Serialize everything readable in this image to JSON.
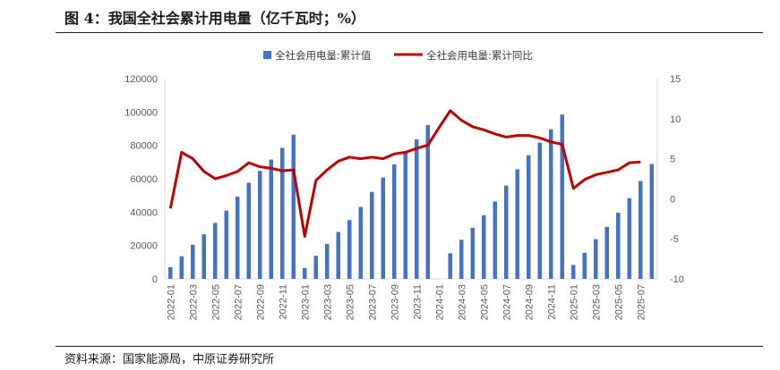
{
  "figure": {
    "title": "图 4：我国全社会累计用电量（亿千瓦时；%）",
    "source": "资料来源：国家能源局，中原证券研究所"
  },
  "colors": {
    "bar": "#4472C4",
    "line": "#C00000",
    "axis": "#D9D9D9",
    "text": "#595959"
  },
  "chart_data": {
    "type": "bar+line",
    "title": "图 4：我国全社会累计用电量（亿千瓦时；%）",
    "categories": [
      "2022-01",
      "2022-02",
      "2022-03",
      "2022-04",
      "2022-05",
      "2022-06",
      "2022-07",
      "2022-08",
      "2022-09",
      "2022-10",
      "2022-11",
      "2022-12",
      "2023-01",
      "2023-02",
      "2023-03",
      "2023-04",
      "2023-05",
      "2023-06",
      "2023-07",
      "2023-08",
      "2023-09",
      "2023-10",
      "2023-11",
      "2023-12",
      "2024-01",
      "2024-02",
      "2024-03",
      "2024-04",
      "2024-05",
      "2024-06",
      "2024-07",
      "2024-08",
      "2024-09",
      "2024-10",
      "2024-11",
      "2024-12",
      "2025-01",
      "2025-02",
      "2025-03",
      "2025-04",
      "2025-05",
      "2025-06",
      "2025-07",
      "2025-08"
    ],
    "x_tick_labels": [
      "2022-01",
      "2022-03",
      "2022-05",
      "2022-07",
      "2022-09",
      "2022-11",
      "2023-01",
      "2023-03",
      "2023-05",
      "2023-07",
      "2023-09",
      "2023-11",
      "2024-01",
      "2024-03",
      "2024-05",
      "2024-07",
      "2024-09",
      "2024-11",
      "2025-01",
      "2025-03",
      "2025-05",
      "2025-07"
    ],
    "series": [
      {
        "name": "全社会用电量:累计值",
        "type": "bar",
        "axis": "left",
        "values": [
          7000,
          13500,
          20400,
          26700,
          33500,
          40900,
          49300,
          57600,
          64700,
          71500,
          78500,
          86400,
          6500,
          13800,
          20900,
          28100,
          35200,
          43100,
          52100,
          60700,
          68600,
          76000,
          83600,
          92200,
          null,
          15300,
          23400,
          30600,
          38100,
          46400,
          55900,
          65700,
          74100,
          81700,
          89700,
          98500,
          8300,
          15600,
          23800,
          31200,
          39700,
          48400,
          58600,
          68800
        ]
      },
      {
        "name": "全社会用电量:累计同比",
        "type": "line",
        "axis": "right",
        "values": [
          -1.2,
          5.8,
          5.0,
          3.4,
          2.5,
          2.9,
          3.4,
          4.5,
          4.0,
          3.8,
          3.5,
          3.6,
          -4.7,
          2.3,
          3.6,
          4.7,
          5.2,
          5.0,
          5.2,
          5.0,
          5.6,
          5.8,
          6.3,
          6.7,
          8.9,
          11.0,
          9.8,
          9.0,
          8.6,
          8.1,
          7.7,
          7.9,
          7.9,
          7.6,
          7.1,
          6.8,
          1.3,
          2.4,
          3.0,
          3.3,
          3.6,
          4.5,
          4.6,
          null
        ]
      }
    ],
    "y_left": {
      "min": 0,
      "max": 120000,
      "ticks": [
        "0",
        "20000",
        "40000",
        "60000",
        "80000",
        "100000",
        "120000"
      ]
    },
    "y_right": {
      "min": -10,
      "max": 15,
      "ticks": [
        "-10",
        "-5",
        "0",
        "5",
        "10",
        "15"
      ]
    },
    "legend": {
      "position": "top-center",
      "entries": [
        "全社会用电量:累计值",
        "全社会用电量:累计同比"
      ]
    }
  }
}
